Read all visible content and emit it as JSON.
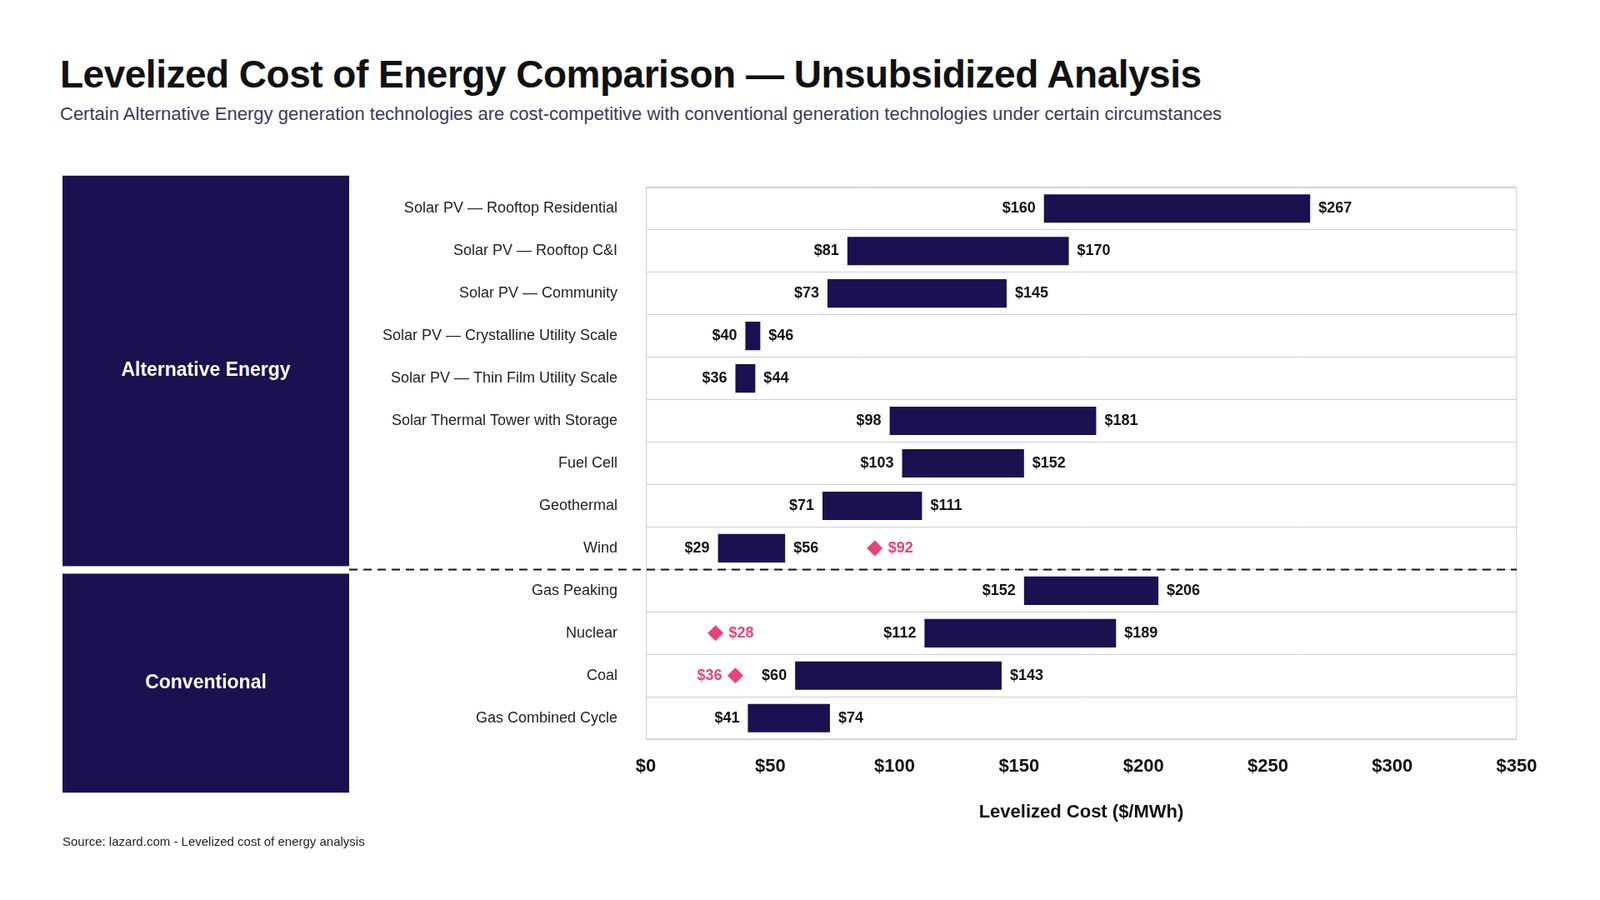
{
  "chart_data": {
    "type": "bar",
    "orientation": "horizontal",
    "title": "Levelized Cost of Energy Comparison — Unsubsidized Analysis",
    "subtitle": "Certain Alternative Energy generation technologies are cost-competitive with conventional generation technologies under certain circumstances",
    "source": "Source: lazard.com - Levelized cost of energy analysis",
    "x_label": "Levelized Cost ($/MWh)",
    "categories": [
      "Solar PV — Rooftop Residential",
      "Solar PV — Rooftop C&I",
      "Solar PV — Community",
      "Solar PV — Crystalline Utility Scale",
      "Solar PV — Thin Film Utility Scale",
      "Solar Thermal Tower with Storage",
      "Fuel Cell",
      "Geothermal",
      "Wind",
      "Gas Peaking",
      "Nuclear",
      "Coal",
      "Gas Combined Cycle"
    ],
    "groups": [
      "Alternative Energy",
      "Alternative Energy",
      "Alternative Energy",
      "Alternative Energy",
      "Alternative Energy",
      "Alternative Energy",
      "Alternative Energy",
      "Alternative Energy",
      "Alternative Energy",
      "Conventional",
      "Conventional",
      "Conventional",
      "Conventional"
    ],
    "values": [
      [
        160,
        267
      ],
      [
        81,
        170
      ],
      [
        73,
        145
      ],
      [
        40,
        46
      ],
      [
        36,
        44
      ],
      [
        98,
        181
      ],
      [
        103,
        152
      ],
      [
        71,
        111
      ],
      [
        29,
        56
      ],
      [
        152,
        206
      ],
      [
        112,
        189
      ],
      [
        60,
        143
      ],
      [
        41,
        74
      ]
    ],
    "value_labels": [
      [
        "$160",
        "$267"
      ],
      [
        "$81",
        "$170"
      ],
      [
        "$73",
        "$145"
      ],
      [
        "$40",
        "$46"
      ],
      [
        "$36",
        "$44"
      ],
      [
        "$98",
        "$181"
      ],
      [
        "$103",
        "$152"
      ],
      [
        "$71",
        "$111"
      ],
      [
        "$29",
        "$56"
      ],
      [
        "$152",
        "$206"
      ],
      [
        "$112",
        "$189"
      ],
      [
        "$60",
        "$143"
      ],
      [
        "$41",
        "$74"
      ]
    ],
    "color": "#1c1150",
    "data_labels": true,
    "markers": {
      "values": [
        null,
        null,
        null,
        null,
        null,
        null,
        null,
        null,
        92,
        null,
        28,
        36,
        null
      ],
      "value_labels": [
        null,
        null,
        null,
        null,
        null,
        null,
        null,
        null,
        "$92",
        null,
        "$28",
        "$36",
        null
      ],
      "color": "#e5457a",
      "marker": "diamond"
    },
    "xlim": [
      0,
      350
    ],
    "xticks": [
      {
        "value": 0,
        "label": "$0"
      },
      {
        "value": 50,
        "label": "$50"
      },
      {
        "value": 100,
        "label": "$100"
      },
      {
        "value": 150,
        "label": "$150"
      },
      {
        "value": 200,
        "label": "$200"
      },
      {
        "value": 250,
        "label": "$250"
      },
      {
        "value": 300,
        "label": "$300"
      },
      {
        "value": 350,
        "label": "$350"
      }
    ],
    "legend": "none"
  }
}
